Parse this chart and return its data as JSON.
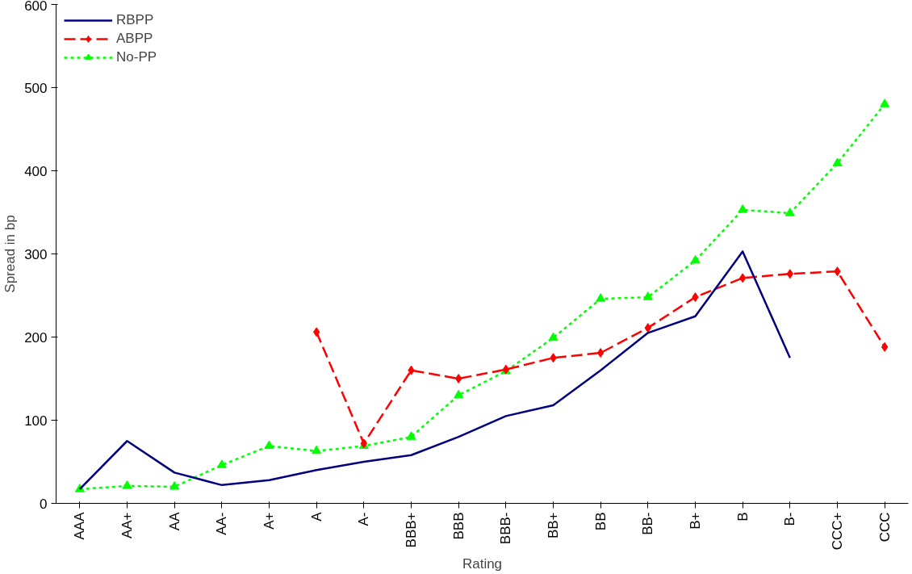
{
  "chart_data": {
    "type": "line",
    "xlabel": "Rating",
    "ylabel": "Spread in bp",
    "categories": [
      "AAA",
      "AA+",
      "AA",
      "AA-",
      "A+",
      "A",
      "A-",
      "BBB+",
      "BBB",
      "BBB-",
      "BB+",
      "BB",
      "BB-",
      "B+",
      "B",
      "B-",
      "CCC+",
      "CCC"
    ],
    "series": [
      {
        "name": "RBPP",
        "color": "#000080",
        "line_style": "solid",
        "marker": "none",
        "values": [
          17,
          75,
          37,
          22,
          28,
          40,
          50,
          58,
          80,
          105,
          118,
          160,
          205,
          225,
          303,
          175,
          null,
          null
        ]
      },
      {
        "name": "ABPP",
        "color": "#ff0000",
        "line_style": "dashed",
        "marker": "diamond",
        "values": [
          null,
          null,
          null,
          null,
          null,
          206,
          72,
          160,
          150,
          161,
          175,
          181,
          211,
          248,
          271,
          276,
          279,
          188
        ]
      },
      {
        "name": "No-PP",
        "color": "#00ff00",
        "line_style": "dotted",
        "marker": "triangle",
        "values": [
          17,
          21,
          20,
          46,
          69,
          63,
          69,
          80,
          130,
          159,
          199,
          246,
          248,
          292,
          353,
          349,
          409,
          480
        ]
      }
    ],
    "ylim": [
      0,
      600
    ],
    "yticks": [
      0,
      100,
      200,
      300,
      400,
      500,
      600
    ],
    "grid": false,
    "legend": "top left"
  }
}
